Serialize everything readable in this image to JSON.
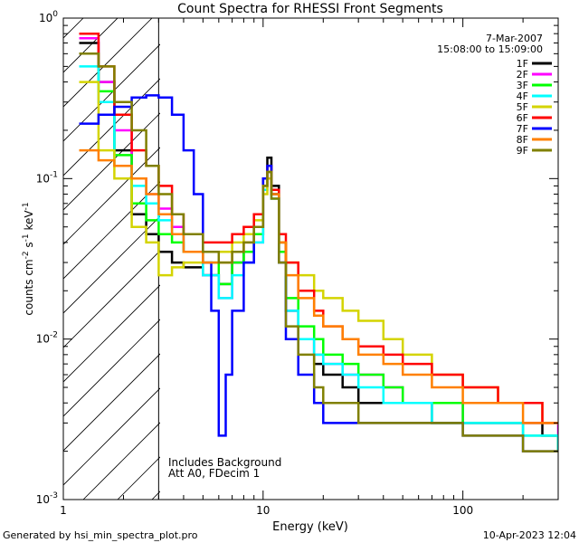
{
  "chart_data": {
    "type": "line",
    "title": "Count Spectra for RHESSI Front Segments",
    "xlabel": "Energy (keV)",
    "ylabel_parts": {
      "base": "counts cm",
      "e1": "-2",
      "mid": " s",
      "e2": "-1",
      "end": " keV",
      "e3": "-1"
    },
    "x_scale": "log",
    "y_scale": "log",
    "xlim": [
      1,
      300
    ],
    "ylim": [
      0.001,
      1
    ],
    "x_tick_labels": [
      {
        "value": 1,
        "label": "1"
      },
      {
        "value": 10,
        "label": "10"
      },
      {
        "value": 100,
        "label": "100"
      }
    ],
    "y_tick_labels": [
      {
        "value": 1,
        "base": "10",
        "exp": "0"
      },
      {
        "value": 0.1,
        "base": "10",
        "exp": "-1"
      },
      {
        "value": 0.01,
        "base": "10",
        "exp": "-2"
      },
      {
        "value": 0.001,
        "base": "10",
        "exp": "-3"
      }
    ],
    "hatch_region_max_kev": 3,
    "date": "7-Mar-2007",
    "time_range": "15:08:00 to 15:09:00",
    "annotations": [
      "Includes Background",
      "Att A0, FDecim 1"
    ],
    "series": [
      {
        "name": "1F",
        "color": "#000000",
        "x": [
          1.2,
          1.5,
          1.8,
          2.2,
          2.6,
          3.0,
          3.5,
          4.0,
          5,
          6,
          7,
          8,
          9,
          10,
          10.5,
          11,
          12,
          13,
          15,
          18,
          20,
          25,
          30,
          40,
          50,
          70,
          100,
          150,
          200,
          250,
          300
        ],
        "y": [
          0.7,
          0.4,
          0.15,
          0.06,
          0.045,
          0.035,
          0.03,
          0.028,
          0.025,
          0.022,
          0.03,
          0.035,
          0.045,
          0.1,
          0.135,
          0.09,
          0.04,
          0.015,
          0.01,
          0.007,
          0.006,
          0.005,
          0.004,
          0.004,
          0.004,
          0.003,
          0.003,
          0.003,
          0.003,
          0.0025,
          0.002
        ]
      },
      {
        "name": "2F",
        "color": "#ff00ff",
        "x": [
          1.2,
          1.5,
          1.8,
          2.2,
          2.6,
          3.0,
          3.5,
          4.0,
          5,
          6,
          7,
          8,
          9,
          10,
          10.5,
          11,
          12,
          13,
          15,
          18,
          20,
          25,
          30,
          40,
          50,
          70,
          100,
          150,
          200,
          250,
          300
        ],
        "y": [
          0.75,
          0.4,
          0.2,
          0.1,
          0.08,
          0.065,
          0.05,
          0.035,
          0.025,
          0.018,
          0.03,
          0.03,
          0.04,
          0.09,
          0.12,
          0.08,
          0.03,
          0.015,
          0.01,
          0.008,
          0.007,
          0.006,
          0.006,
          0.005,
          0.004,
          0.004,
          0.003,
          0.003,
          0.003,
          0.003,
          0.0025
        ]
      },
      {
        "name": "3F",
        "color": "#00ff00",
        "x": [
          1.2,
          1.5,
          1.8,
          2.2,
          2.6,
          3.0,
          3.5,
          4.0,
          5,
          6,
          7,
          8,
          9,
          10,
          10.5,
          11,
          12,
          13,
          15,
          18,
          20,
          25,
          30,
          40,
          50,
          70,
          100,
          150,
          200,
          250,
          300
        ],
        "y": [
          0.6,
          0.35,
          0.14,
          0.07,
          0.055,
          0.045,
          0.04,
          0.035,
          0.03,
          0.022,
          0.03,
          0.035,
          0.045,
          0.09,
          0.12,
          0.08,
          0.035,
          0.018,
          0.012,
          0.01,
          0.008,
          0.007,
          0.006,
          0.005,
          0.004,
          0.004,
          0.003,
          0.003,
          0.0025,
          0.0025,
          0.002
        ]
      },
      {
        "name": "4F",
        "color": "#00ffff",
        "x": [
          1.2,
          1.5,
          1.8,
          2.2,
          2.6,
          3.0,
          3.5,
          4.0,
          5,
          6,
          7,
          8,
          9,
          10,
          10.5,
          11,
          12,
          13,
          15,
          18,
          20,
          25,
          30,
          40,
          50,
          70,
          100,
          150,
          200,
          250,
          300
        ],
        "y": [
          0.5,
          0.3,
          0.12,
          0.09,
          0.07,
          0.055,
          0.045,
          0.035,
          0.025,
          0.018,
          0.025,
          0.03,
          0.04,
          0.085,
          0.11,
          0.075,
          0.03,
          0.015,
          0.01,
          0.008,
          0.007,
          0.006,
          0.005,
          0.004,
          0.004,
          0.003,
          0.003,
          0.003,
          0.0025,
          0.0025,
          0.002
        ]
      },
      {
        "name": "5F",
        "color": "#d4d400",
        "x": [
          1.2,
          1.5,
          1.8,
          2.2,
          2.6,
          3.0,
          3.5,
          4.0,
          5,
          6,
          7,
          8,
          9,
          10,
          10.5,
          11,
          12,
          13,
          15,
          18,
          20,
          25,
          30,
          40,
          50,
          70,
          100,
          150,
          200,
          250,
          300
        ],
        "y": [
          0.4,
          0.15,
          0.1,
          0.05,
          0.04,
          0.025,
          0.028,
          0.03,
          0.035,
          0.035,
          0.04,
          0.045,
          0.055,
          0.08,
          0.1,
          0.08,
          0.04,
          0.03,
          0.025,
          0.02,
          0.018,
          0.015,
          0.013,
          0.01,
          0.008,
          0.006,
          0.005,
          0.004,
          0.004,
          0.003,
          0.003
        ]
      },
      {
        "name": "6F",
        "color": "#ff0000",
        "x": [
          1.2,
          1.5,
          1.8,
          2.2,
          2.6,
          3.0,
          3.5,
          4.0,
          5,
          6,
          7,
          8,
          9,
          10,
          10.5,
          11,
          12,
          13,
          15,
          18,
          20,
          25,
          30,
          40,
          50,
          70,
          100,
          150,
          200,
          250,
          300
        ],
        "y": [
          0.8,
          0.5,
          0.25,
          0.15,
          0.12,
          0.09,
          0.06,
          0.045,
          0.04,
          0.04,
          0.045,
          0.05,
          0.06,
          0.1,
          0.12,
          0.085,
          0.045,
          0.03,
          0.02,
          0.015,
          0.012,
          0.01,
          0.009,
          0.008,
          0.007,
          0.006,
          0.005,
          0.004,
          0.004,
          0.003,
          0.003
        ]
      },
      {
        "name": "7F",
        "color": "#0000ff",
        "x": [
          1.2,
          1.5,
          1.8,
          2.2,
          2.6,
          3.0,
          3.5,
          4.0,
          4.5,
          5,
          5.5,
          6,
          6.5,
          7,
          8,
          9,
          10,
          10.5,
          11,
          12,
          13,
          15,
          18,
          20,
          25,
          30,
          40,
          50,
          70,
          100,
          150,
          200,
          250,
          300
        ],
        "y": [
          0.22,
          0.25,
          0.28,
          0.32,
          0.33,
          0.32,
          0.25,
          0.15,
          0.08,
          0.03,
          0.015,
          0.0025,
          0.006,
          0.015,
          0.03,
          0.05,
          0.1,
          0.12,
          0.08,
          0.03,
          0.01,
          0.006,
          0.004,
          0.003,
          0.003,
          0.003,
          0.003,
          0.003,
          0.003,
          0.0025,
          0.0025,
          0.002,
          0.002,
          0.002
        ]
      },
      {
        "name": "8F",
        "color": "#ff8000",
        "x": [
          1.2,
          1.5,
          1.8,
          2.2,
          2.6,
          3.0,
          3.5,
          4.0,
          5,
          6,
          7,
          8,
          9,
          10,
          10.5,
          11,
          12,
          13,
          15,
          18,
          20,
          25,
          30,
          40,
          50,
          70,
          100,
          150,
          200,
          250,
          300
        ],
        "y": [
          0.15,
          0.13,
          0.12,
          0.1,
          0.08,
          0.06,
          0.045,
          0.035,
          0.03,
          0.03,
          0.035,
          0.04,
          0.05,
          0.09,
          0.11,
          0.08,
          0.04,
          0.025,
          0.018,
          0.014,
          0.012,
          0.01,
          0.008,
          0.007,
          0.006,
          0.005,
          0.004,
          0.004,
          0.003,
          0.003,
          0.003
        ]
      },
      {
        "name": "9F",
        "color": "#808000",
        "x": [
          1.2,
          1.5,
          1.8,
          2.2,
          2.6,
          3.0,
          3.5,
          4.0,
          5,
          6,
          7,
          8,
          9,
          10,
          10.5,
          11,
          12,
          13,
          15,
          18,
          20,
          25,
          30,
          40,
          50,
          70,
          100,
          150,
          200,
          250,
          300
        ],
        "y": [
          0.6,
          0.5,
          0.3,
          0.2,
          0.12,
          0.08,
          0.06,
          0.045,
          0.035,
          0.03,
          0.035,
          0.04,
          0.05,
          0.09,
          0.11,
          0.075,
          0.03,
          0.012,
          0.008,
          0.005,
          0.004,
          0.004,
          0.003,
          0.003,
          0.003,
          0.003,
          0.0025,
          0.0025,
          0.002,
          0.002,
          0.002
        ]
      }
    ]
  },
  "footer": {
    "generated_by": "Generated by hsi_min_spectra_plot.pro",
    "timestamp": "10-Apr-2023 12:04"
  }
}
